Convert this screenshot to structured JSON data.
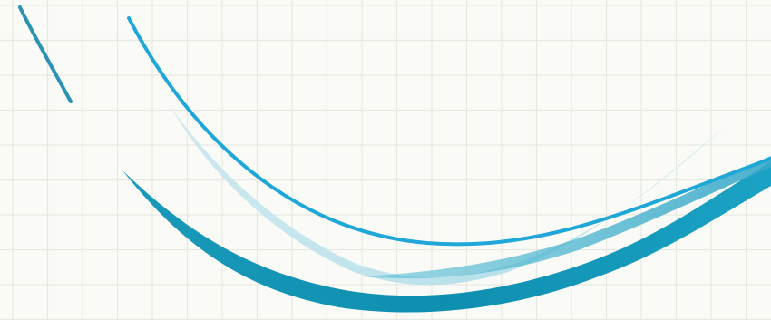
{
  "artwork": {
    "background_color": "#fafaf6",
    "grid_line_color": "#e6e9e2",
    "strokes": [
      {
        "name": "short-diagonal",
        "color": "#2a93b4"
      },
      {
        "name": "thin-arc",
        "color": "#1fa7d8"
      },
      {
        "name": "light-sweep",
        "color": "#bfe3ec"
      },
      {
        "name": "wide-ribbon",
        "color": "#1696b6"
      },
      {
        "name": "ribbon-highlight",
        "color": "#4fb6cf"
      }
    ]
  }
}
